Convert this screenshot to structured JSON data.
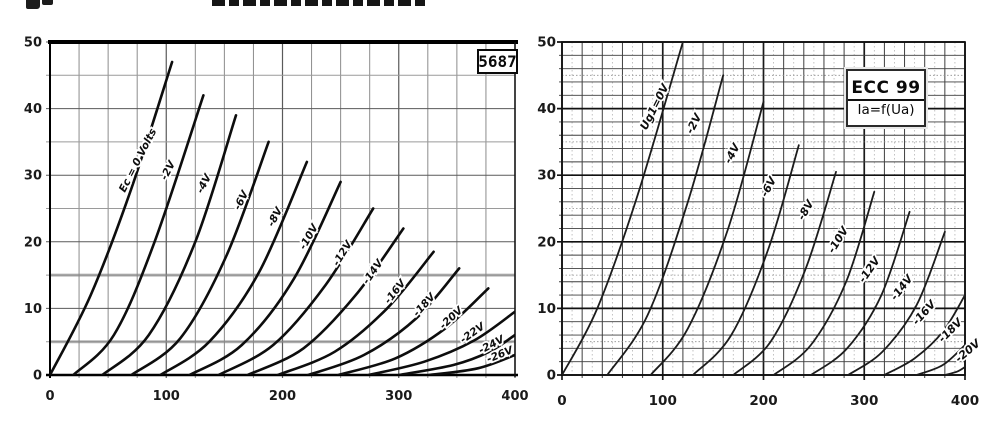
{
  "chart_data": [
    {
      "type": "line",
      "title": "5687",
      "description": "anode current (mA) vs anode voltage (V) for grid voltages Ec",
      "xlim": [
        0,
        400
      ],
      "ylim": [
        0,
        50
      ],
      "x_ticks": [
        "0",
        "100",
        "200",
        "300",
        "400"
      ],
      "y_ticks": [
        "0",
        "10",
        "20",
        "30",
        "40",
        "50"
      ],
      "x_grid_step": 25,
      "y_grid_step": 5,
      "grid": "on",
      "series": [
        {
          "name": "Ec = 0 Volts",
          "grid_voltage": 0,
          "points": [
            [
              0,
              0
            ],
            [
              35,
              12
            ],
            [
              70,
              28
            ],
            [
              105,
              47
            ]
          ],
          "label_at": [
            78,
            32
          ],
          "label_angle": -63
        },
        {
          "name": "-2V",
          "grid_voltage": -2,
          "points": [
            [
              20,
              0
            ],
            [
              55,
              6
            ],
            [
              90,
              20
            ],
            [
              132,
              42
            ]
          ],
          "label_at": [
            104,
            30.5
          ],
          "label_angle": -63
        },
        {
          "name": "-4V",
          "grid_voltage": -4,
          "points": [
            [
              45,
              0
            ],
            [
              85,
              6
            ],
            [
              125,
              20
            ],
            [
              160,
              39
            ]
          ],
          "label_at": [
            135,
            28.5
          ],
          "label_angle": -63
        },
        {
          "name": "-6V",
          "grid_voltage": -6,
          "points": [
            [
              70,
              0
            ],
            [
              112,
              5.5
            ],
            [
              152,
              18
            ],
            [
              188,
              35
            ]
          ],
          "label_at": [
            167,
            26
          ],
          "label_angle": -63
        },
        {
          "name": "-8V",
          "grid_voltage": -8,
          "points": [
            [
              95,
              0
            ],
            [
              137,
              5
            ],
            [
              180,
              15.5
            ],
            [
              221,
              32
            ]
          ],
          "label_at": [
            196,
            23.5
          ],
          "label_angle": -62
        },
        {
          "name": "-10V",
          "grid_voltage": -10,
          "points": [
            [
              120,
              0
            ],
            [
              165,
              4.5
            ],
            [
              210,
              14.5
            ],
            [
              250,
              29
            ]
          ],
          "label_at": [
            225,
            20.5
          ],
          "label_angle": -60
        },
        {
          "name": "-12V",
          "grid_voltage": -12,
          "points": [
            [
              145,
              0
            ],
            [
              192,
              4.5
            ],
            [
              237,
              13.5
            ],
            [
              278,
              25
            ]
          ],
          "label_at": [
            254,
            18
          ],
          "label_angle": -58
        },
        {
          "name": "-14V",
          "grid_voltage": -14,
          "points": [
            [
              170,
              0
            ],
            [
              218,
              4
            ],
            [
              263,
              12
            ],
            [
              304,
              22
            ]
          ],
          "label_at": [
            280,
            15.2
          ],
          "label_angle": -55
        },
        {
          "name": "-16V",
          "grid_voltage": -16,
          "points": [
            [
              196,
              0
            ],
            [
              245,
              3.5
            ],
            [
              290,
              10
            ],
            [
              330,
              18.5
            ]
          ],
          "label_at": [
            299,
            12.2
          ],
          "label_angle": -52
        },
        {
          "name": "-18V",
          "grid_voltage": -18,
          "points": [
            [
              222,
              0
            ],
            [
              270,
              3
            ],
            [
              315,
              8.5
            ],
            [
              352,
              16
            ]
          ],
          "label_at": [
            324,
            10.2
          ],
          "label_angle": -48
        },
        {
          "name": "-20V",
          "grid_voltage": -20,
          "points": [
            [
              248,
              0
            ],
            [
              297,
              2.5
            ],
            [
              340,
              7
            ],
            [
              377,
              13
            ]
          ],
          "label_at": [
            347,
            8.2
          ],
          "label_angle": -43
        },
        {
          "name": "-22V",
          "grid_voltage": -22,
          "points": [
            [
              274,
              0
            ],
            [
              322,
              2
            ],
            [
              365,
              5.2
            ],
            [
              400,
              9.5
            ]
          ],
          "label_at": [
            365,
            5.9
          ],
          "label_angle": -35
        },
        {
          "name": "-24V",
          "grid_voltage": -24,
          "points": [
            [
              300,
              0
            ],
            [
              347,
              1.5
            ],
            [
              378,
              3.5
            ],
            [
              400,
              6
            ]
          ],
          "label_at": [
            381,
            4.1
          ],
          "label_angle": -28
        },
        {
          "name": "-26V",
          "grid_voltage": -26,
          "points": [
            [
              326,
              0
            ],
            [
              368,
              1
            ],
            [
              400,
              3
            ]
          ],
          "label_at": [
            388,
            2.6
          ],
          "label_angle": -22
        }
      ]
    },
    {
      "type": "line",
      "title": "ECC 99",
      "subtitle": "Ia=f(Ua)",
      "description": "anode current (mA) vs anode voltage (V) for grid voltages Ug1",
      "xlim": [
        0,
        400
      ],
      "ylim": [
        0,
        50
      ],
      "x_ticks": [
        "0",
        "100",
        "200",
        "300",
        "400"
      ],
      "y_ticks": [
        "0",
        "10",
        "20",
        "30",
        "40",
        "50"
      ],
      "x_grid_step": 20,
      "y_grid_step": 2,
      "grid": "on",
      "series": [
        {
          "name": "Ug1=0V",
          "grid_voltage": 0,
          "points": [
            [
              0,
              0
            ],
            [
              35,
              10
            ],
            [
              75,
              27
            ],
            [
              120,
              50
            ]
          ],
          "label_at": [
            95,
            40
          ],
          "label_angle": -63
        },
        {
          "name": "-2V",
          "grid_voltage": -2,
          "points": [
            [
              45,
              0
            ],
            [
              85,
              9
            ],
            [
              125,
              26
            ],
            [
              160,
              45
            ]
          ],
          "label_at": [
            134,
            37.5
          ],
          "label_angle": -63
        },
        {
          "name": "-4V",
          "grid_voltage": -4,
          "points": [
            [
              88,
              0
            ],
            [
              125,
              7
            ],
            [
              165,
              22
            ],
            [
              200,
              41
            ]
          ],
          "label_at": [
            172,
            33
          ],
          "label_angle": -62
        },
        {
          "name": "-6V",
          "grid_voltage": -6,
          "points": [
            [
              130,
              0
            ],
            [
              168,
              6
            ],
            [
              205,
              19
            ],
            [
              235,
              34.5
            ]
          ],
          "label_at": [
            208,
            28
          ],
          "label_angle": -62
        },
        {
          "name": "-8V",
          "grid_voltage": -8,
          "points": [
            [
              170,
              0
            ],
            [
              207,
              5
            ],
            [
              242,
              16
            ],
            [
              272,
              30.5
            ]
          ],
          "label_at": [
            245,
            24.5
          ],
          "label_angle": -60
        },
        {
          "name": "-10V",
          "grid_voltage": -10,
          "points": [
            [
              210,
              0
            ],
            [
              247,
              4.5
            ],
            [
              282,
              14
            ],
            [
              310,
              27.5
            ]
          ],
          "label_at": [
            277,
            20
          ],
          "label_angle": -58
        },
        {
          "name": "-12V",
          "grid_voltage": -12,
          "points": [
            [
              247,
              0
            ],
            [
              283,
              4
            ],
            [
              317,
              12
            ],
            [
              345,
              24.5
            ]
          ],
          "label_at": [
            308,
            15.5
          ],
          "label_angle": -55
        },
        {
          "name": "-14V",
          "grid_voltage": -14,
          "points": [
            [
              284,
              0
            ],
            [
              318,
              3.5
            ],
            [
              352,
              10.5
            ],
            [
              380,
              21.5
            ]
          ],
          "label_at": [
            340,
            12.8
          ],
          "label_angle": -52
        },
        {
          "name": "-16V",
          "grid_voltage": -16,
          "points": [
            [
              320,
              0
            ],
            [
              350,
              2.5
            ],
            [
              378,
              6.5
            ],
            [
              400,
              12
            ]
          ],
          "label_at": [
            362,
            9
          ],
          "label_angle": -48
        },
        {
          "name": "-18V",
          "grid_voltage": -18,
          "points": [
            [
              352,
              0
            ],
            [
              378,
              1.5
            ],
            [
              400,
              4.5
            ]
          ],
          "label_at": [
            388,
            6.3
          ],
          "label_angle": -45
        },
        {
          "name": "-20V",
          "grid_voltage": -20,
          "points": [
            [
              380,
              0
            ],
            [
              392,
              0.5
            ],
            [
              400,
              1.2
            ]
          ],
          "label_at": [
            405,
            3.2
          ],
          "label_angle": -40
        }
      ]
    }
  ]
}
